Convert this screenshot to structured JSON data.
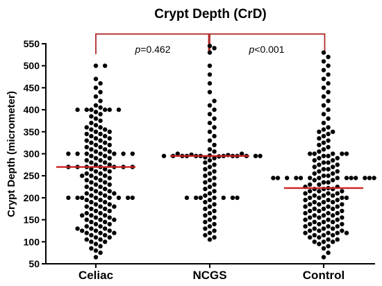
{
  "chart_data": {
    "type": "scatter",
    "subtype": "dot-plot",
    "title": "Crypt Depth (CrD)",
    "ylabel": "Crypt Depth (micrometer)",
    "xlabel": "",
    "ylim": [
      50,
      550
    ],
    "yticks": [
      50,
      100,
      150,
      200,
      250,
      300,
      350,
      400,
      450,
      500,
      550
    ],
    "categories": [
      "Celiac",
      "NCGS",
      "Control"
    ],
    "medians": [
      270,
      295,
      222
    ],
    "point_color": "#000000",
    "median_color": "#cc2222",
    "bracket_color": "#b02a2a",
    "grid": false,
    "series": [
      {
        "category": "Celiac",
        "values": [
          65,
          75,
          80,
          85,
          90,
          95,
          100,
          100,
          105,
          105,
          110,
          110,
          115,
          115,
          120,
          120,
          120,
          125,
          125,
          125,
          130,
          130,
          130,
          135,
          135,
          140,
          140,
          145,
          145,
          150,
          150,
          150,
          155,
          155,
          160,
          160,
          160,
          165,
          165,
          170,
          170,
          175,
          175,
          180,
          180,
          180,
          185,
          185,
          190,
          190,
          195,
          195,
          200,
          200,
          200,
          200,
          200,
          200,
          200,
          200,
          205,
          205,
          210,
          210,
          210,
          215,
          215,
          220,
          220,
          225,
          225,
          230,
          230,
          235,
          235,
          240,
          240,
          245,
          245,
          250,
          250,
          250,
          255,
          255,
          260,
          260,
          265,
          265,
          270,
          270,
          270,
          270,
          270,
          270,
          270,
          275,
          275,
          280,
          280,
          285,
          285,
          290,
          290,
          295,
          295,
          300,
          300,
          300,
          300,
          300,
          300,
          300,
          305,
          305,
          310,
          310,
          315,
          315,
          320,
          320,
          325,
          325,
          330,
          330,
          335,
          335,
          340,
          340,
          345,
          345,
          350,
          350,
          355,
          355,
          360,
          360,
          365,
          370,
          375,
          380,
          385,
          390,
          395,
          400,
          400,
          400,
          400,
          400,
          400,
          405,
          410,
          420,
          430,
          440,
          450,
          460,
          470,
          500,
          500
        ]
      },
      {
        "category": "NCGS",
        "values": [
          105,
          110,
          115,
          120,
          125,
          130,
          135,
          140,
          145,
          150,
          155,
          160,
          165,
          170,
          175,
          180,
          185,
          190,
          195,
          200,
          200,
          200,
          200,
          200,
          200,
          200,
          205,
          210,
          215,
          220,
          225,
          230,
          235,
          240,
          245,
          250,
          255,
          260,
          265,
          270,
          275,
          280,
          285,
          290,
          292,
          294,
          295,
          295,
          295,
          295,
          295,
          295,
          295,
          295,
          295,
          295,
          295,
          295,
          296,
          297,
          298,
          300,
          300,
          305,
          310,
          320,
          330,
          340,
          350,
          360,
          370,
          380,
          390,
          400,
          410,
          420,
          440,
          460,
          480,
          500,
          530,
          540,
          545
        ]
      },
      {
        "category": "Control",
        "values": [
          65,
          75,
          85,
          90,
          95,
          100,
          100,
          100,
          105,
          105,
          110,
          110,
          115,
          115,
          115,
          120,
          120,
          120,
          120,
          125,
          125,
          125,
          130,
          130,
          130,
          135,
          135,
          135,
          140,
          140,
          140,
          145,
          145,
          145,
          150,
          150,
          150,
          155,
          155,
          155,
          160,
          160,
          160,
          165,
          165,
          165,
          170,
          170,
          170,
          175,
          175,
          175,
          180,
          180,
          180,
          185,
          185,
          185,
          190,
          190,
          190,
          195,
          195,
          195,
          200,
          200,
          200,
          200,
          205,
          205,
          205,
          210,
          210,
          210,
          215,
          215,
          215,
          220,
          220,
          220,
          222,
          225,
          225,
          230,
          230,
          235,
          235,
          240,
          240,
          245,
          245,
          245,
          245,
          245,
          245,
          245,
          245,
          245,
          245,
          245,
          245,
          245,
          245,
          250,
          250,
          255,
          255,
          260,
          260,
          265,
          265,
          270,
          270,
          275,
          275,
          280,
          280,
          285,
          285,
          290,
          290,
          295,
          295,
          300,
          300,
          300,
          300,
          300,
          305,
          310,
          315,
          320,
          325,
          330,
          335,
          340,
          345,
          350,
          350,
          355,
          360,
          370,
          380,
          390,
          400,
          410,
          420,
          430,
          440,
          450,
          460,
          470,
          480,
          490,
          500,
          510,
          520,
          530
        ]
      }
    ],
    "annotations": [
      {
        "from": "Celiac",
        "to": "NCGS",
        "p_symbol": "p",
        "p_text": "=0.462"
      },
      {
        "from": "NCGS",
        "to": "Control",
        "p_symbol": "p",
        "p_text": "<0.001"
      }
    ]
  }
}
